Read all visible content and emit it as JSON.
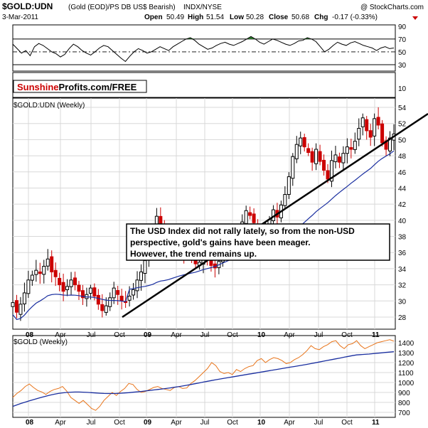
{
  "header": {
    "symbol": "$GOLD:UDN",
    "description": "(Gold (EOD)/PS DB US$ Bearish)",
    "exchange": "INDX/NYSE",
    "credit": "@ StockCharts.com",
    "date": "3-Mar-2011",
    "open_label": "Open",
    "open": "50.49",
    "high_label": "High",
    "high": "51.54",
    "low_label": "Low",
    "low": "50.28",
    "close_label": "Close",
    "close": "50.68",
    "chg_label": "Chg",
    "chg": "-0.17 (-0.33%)"
  },
  "brand": {
    "part1": "Sunshine",
    "part2": "Profits.com/FREE"
  },
  "annotation": "The USD Index did not rally lately, so from the non-USD perspective, gold's gains have been meager. However, the trend remains up.",
  "colors": {
    "up": "#000000",
    "down": "#cc0000",
    "ma": "#1a2fa0",
    "gold_price": "#e8741a",
    "rsi_fill": "#2e7d2e",
    "chg": "#cc0000",
    "brand_red": "#cc0000"
  },
  "chart_data": [
    {
      "type": "line",
      "panel": "RSI",
      "yticks": [
        90,
        70,
        50,
        30,
        10
      ],
      "reference_lines": [
        70,
        50,
        30
      ],
      "y": [
        62,
        55,
        48,
        52,
        44,
        58,
        63,
        60,
        55,
        50,
        47,
        42,
        46,
        55,
        62,
        58,
        52,
        48,
        45,
        50,
        56,
        60,
        58,
        52,
        46,
        40,
        35,
        43,
        50,
        55,
        52,
        48,
        50,
        54,
        58,
        55,
        52,
        58,
        62,
        66,
        70,
        72,
        68,
        62,
        58,
        54,
        56,
        60,
        63,
        65,
        62,
        60,
        63,
        66,
        70,
        74,
        70,
        65,
        62,
        66,
        70,
        68,
        65,
        62,
        60,
        63,
        67,
        68,
        72,
        70,
        66,
        58,
        50,
        54,
        60,
        65,
        62,
        60,
        64,
        66,
        63,
        60,
        58,
        56,
        52,
        56,
        58,
        55,
        56
      ]
    },
    {
      "type": "candlestick",
      "panel": "$GOLD:UDN (Weekly)",
      "title": "$GOLD:UDN (Weekly)",
      "x_tick_labels": [
        "08",
        "Apr",
        "Jul",
        "Oct",
        "09",
        "Apr",
        "Jul",
        "Oct",
        "10",
        "Apr",
        "Jul",
        "Oct",
        "11"
      ],
      "yticks": [
        28,
        30,
        32,
        34,
        36,
        38,
        40,
        42,
        44,
        46,
        48,
        50,
        52,
        54
      ],
      "ylim": [
        27,
        55
      ],
      "close": [
        29.8,
        28.6,
        29.6,
        31.0,
        32.6,
        33.2,
        33.8,
        33.4,
        34.3,
        35.2,
        33.6,
        33.0,
        32.0,
        31.2,
        31.8,
        32.6,
        32.0,
        31.2,
        30.4,
        30.8,
        31.6,
        30.6,
        29.6,
        28.8,
        29.4,
        30.4,
        31.6,
        30.8,
        30.0,
        29.8,
        30.6,
        31.4,
        32.6,
        33.6,
        35.0,
        36.5,
        38.2,
        40.5,
        39.2,
        37.4,
        36.8,
        37.6,
        36.9,
        35.8,
        35.5,
        36.0,
        35.2,
        34.6,
        34.8,
        35.8,
        35.3,
        34.4,
        34.1,
        34.9,
        35.6,
        36.8,
        37.9,
        37.1,
        38.9,
        39.8,
        41.2,
        40.6,
        39.7,
        38.9,
        38.7,
        39.2,
        40.1,
        41.3,
        40.4,
        41.9,
        43.2,
        45.4,
        47.9,
        49.4,
        50.2,
        49.1,
        48.4,
        47.2,
        48.8,
        47.3,
        46.2,
        45.1,
        47.4,
        48.1,
        47.2,
        48.3,
        49.1,
        48.8,
        49.8,
        51.4,
        52.7,
        51.1,
        50.3,
        52.6,
        51.8,
        49.6,
        48.8,
        50.2,
        50.7
      ]
    },
    {
      "type": "line",
      "panel": "$GOLD (Weekly)",
      "title": "$GOLD (Weekly)",
      "x_tick_labels": [
        "08",
        "Apr",
        "Jul",
        "Oct",
        "09",
        "Apr",
        "Jul",
        "Oct",
        "10",
        "Apr",
        "Jul",
        "Oct",
        "11"
      ],
      "yticks": [
        700,
        800,
        900,
        1000,
        1100,
        1200,
        1300,
        1400
      ],
      "ylim": [
        660,
        1450
      ],
      "series": [
        {
          "values": [
            850,
            890,
            920,
            960,
            985,
            950,
            920,
            905,
            880,
            910,
            930,
            940,
            960,
            915,
            850,
            820,
            790,
            820,
            780,
            740,
            720,
            760,
            820,
            860,
            900,
            870,
            910,
            940,
            990,
            980,
            930,
            900,
            910,
            930,
            950,
            960,
            940,
            930,
            920,
            950,
            960,
            940,
            945,
            990,
            1020,
            1060,
            1100,
            1140,
            1200,
            1170,
            1110,
            1090,
            1100,
            1080,
            1130,
            1110,
            1140,
            1160,
            1170,
            1220,
            1240,
            1200,
            1230,
            1250,
            1240,
            1220,
            1190,
            1200,
            1230,
            1250,
            1280,
            1320,
            1370,
            1340,
            1330,
            1360,
            1380,
            1410,
            1420,
            1370,
            1340,
            1380,
            1390,
            1420,
            1370,
            1340,
            1360,
            1380,
            1400,
            1410,
            1420,
            1430,
            1415
          ]
        },
        {
          "values": [
            760,
            775,
            790,
            803,
            816,
            828,
            840,
            852,
            863,
            873,
            882,
            890,
            896,
            900,
            903,
            904,
            904,
            903,
            901,
            898,
            895,
            892,
            890,
            889,
            889,
            890,
            892,
            895,
            898,
            902,
            906,
            910,
            915,
            920,
            925,
            930,
            935,
            940,
            946,
            952,
            958,
            965,
            972,
            980,
            988,
            996,
            1004,
            1012,
            1020,
            1028,
            1035,
            1042,
            1049,
            1056,
            1063,
            1070,
            1077,
            1084,
            1091,
            1098,
            1105,
            1112,
            1119,
            1126,
            1133,
            1140,
            1147,
            1154,
            1161,
            1168,
            1175,
            1182,
            1190,
            1198,
            1206,
            1214,
            1222,
            1230,
            1238,
            1246,
            1254,
            1262,
            1270,
            1277,
            1280,
            1283,
            1286,
            1290,
            1294,
            1298,
            1302,
            1306,
            1310
          ]
        }
      ]
    }
  ]
}
